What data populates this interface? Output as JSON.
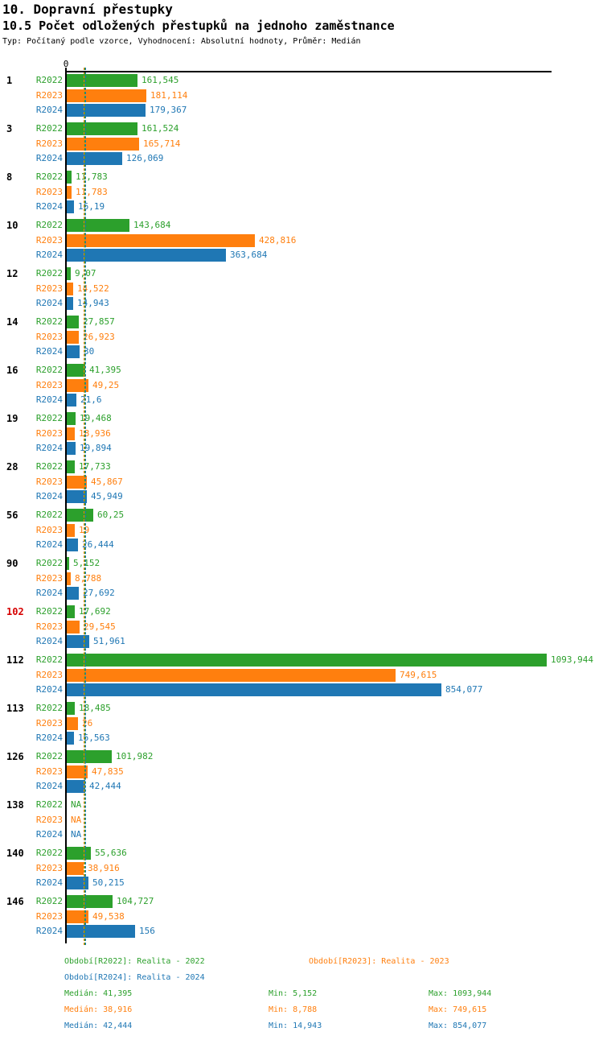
{
  "title": "10. Dopravní přestupky",
  "subtitle": "10.5 Počet odložených přestupků na jednoho zaměstnance",
  "meta": "Typ: Počítaný podle vzorce, Vyhodnocení: Absolutní hodnoty, Průměr: Medián",
  "axis": {
    "zero_label": "0"
  },
  "colors": {
    "r2022": "#2ca02c",
    "r2023": "#ff7f0e",
    "r2024": "#1f77b4",
    "highlight": "#d60000",
    "axis": "#000000"
  },
  "chart_data": {
    "type": "bar",
    "orientation": "horizontal",
    "title": "10.5 Počet odložených přestupků na jednoho zaměstnance",
    "xlim": [
      0,
      1105
    ],
    "grid": false,
    "categories": [
      "1",
      "3",
      "8",
      "10",
      "12",
      "14",
      "16",
      "19",
      "28",
      "56",
      "90",
      "102",
      "112",
      "113",
      "126",
      "138",
      "140",
      "146"
    ],
    "highlighted_category": "102",
    "series": [
      {
        "name": "R2022",
        "color": "#2ca02c",
        "median": 41.395,
        "values": [
          161.545,
          161.524,
          11.783,
          143.684,
          9.07,
          27.857,
          41.395,
          19.468,
          17.733,
          60.25,
          5.152,
          17.692,
          1093.944,
          18.485,
          101.982,
          null,
          55.636,
          104.727
        ],
        "labels": [
          "161,545",
          "161,524",
          "11,783",
          "143,684",
          "9,07",
          "27,857",
          "41,395",
          "19,468",
          "17,733",
          "60,25",
          "5,152",
          "17,692",
          "1093,944",
          "18,485",
          "101,982",
          "NA",
          "55,636",
          "104,727"
        ]
      },
      {
        "name": "R2023",
        "color": "#ff7f0e",
        "median": 38.916,
        "values": [
          181.114,
          165.714,
          11.783,
          428.816,
          14.522,
          26.923,
          49.25,
          18.936,
          45.867,
          19,
          8.788,
          29.545,
          749.615,
          26,
          47.835,
          null,
          38.916,
          49.538
        ],
        "labels": [
          "181,114",
          "165,714",
          "11,783",
          "428,816",
          "14,522",
          "26,923",
          "49,25",
          "18,936",
          "45,867",
          "19",
          "8,788",
          "29,545",
          "749,615",
          "26",
          "47,835",
          "NA",
          "38,916",
          "49,538"
        ]
      },
      {
        "name": "R2024",
        "color": "#1f77b4",
        "median": 42.444,
        "values": [
          179.367,
          126.069,
          16.19,
          363.684,
          14.943,
          30,
          21.6,
          19.894,
          45.949,
          26.444,
          27.692,
          51.961,
          854.077,
          16.563,
          42.444,
          null,
          50.215,
          156
        ],
        "labels": [
          "179,367",
          "126,069",
          "16,19",
          "363,684",
          "14,943",
          "30",
          "21,6",
          "19,894",
          "45,949",
          "26,444",
          "27,692",
          "51,961",
          "854,077",
          "16,563",
          "42,444",
          "NA",
          "50,215",
          "156"
        ]
      }
    ]
  },
  "legend": {
    "r2022": "Období[R2022]: Realita - 2022",
    "r2023": "Období[R2023]: Realita - 2023",
    "r2024": "Období[R2024]: Realita - 2024"
  },
  "stats": [
    {
      "series": "R2022",
      "median": "Medián: 41,395",
      "min": "Min: 5,152",
      "max": "Max: 1093,944"
    },
    {
      "series": "R2023",
      "median": "Medián: 38,916",
      "min": "Min: 8,788",
      "max": "Max: 749,615"
    },
    {
      "series": "R2024",
      "median": "Medián: 42,444",
      "min": "Min: 14,943",
      "max": "Max: 854,077"
    }
  ]
}
